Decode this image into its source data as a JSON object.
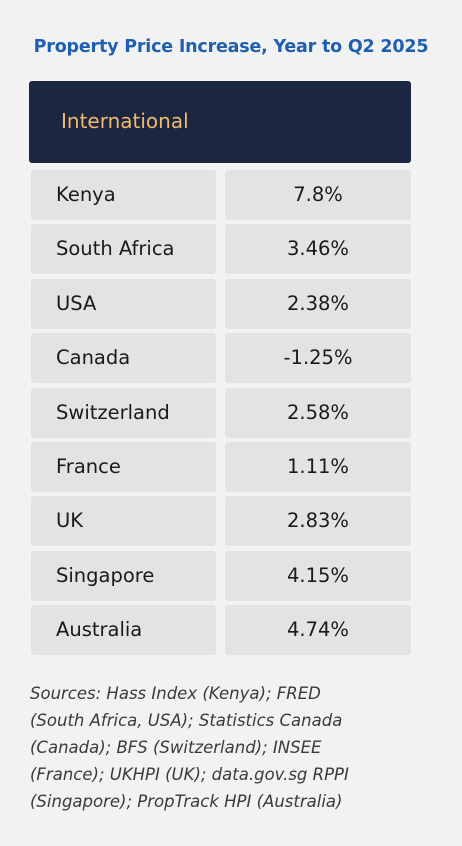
{
  "chart_data": {
    "type": "table",
    "title": "Property Price Increase, Year to Q2 2025",
    "header": "International",
    "rows": [
      {
        "country": "Kenya",
        "value": "7.8%"
      },
      {
        "country": "South Africa",
        "value": "3.46%"
      },
      {
        "country": "USA",
        "value": "2.38%"
      },
      {
        "country": "Canada",
        "value": "-1.25%"
      },
      {
        "country": "Switzerland",
        "value": "2.58%"
      },
      {
        "country": "France",
        "value": "1.11%"
      },
      {
        "country": "UK",
        "value": "2.83%"
      },
      {
        "country": "Singapore",
        "value": "4.15%"
      },
      {
        "country": "Australia",
        "value": "4.74%"
      }
    ],
    "sources": [
      "Sources: Hass Index (Kenya); FRED",
      "(South Africa, USA); Statistics Canada",
      "(Canada); BFS (Switzerland); INSEE",
      "(France); UKHPI (UK); data.gov.sg RPPI",
      "(Singapore); PropTrack HPI (Australia)"
    ]
  },
  "colors": {
    "title": "#1f5fb0",
    "header_background": "#1b2640",
    "header_text": "#f2b86b",
    "cell_background": "#e3e3e3",
    "page_background": "#f2f2f2"
  }
}
